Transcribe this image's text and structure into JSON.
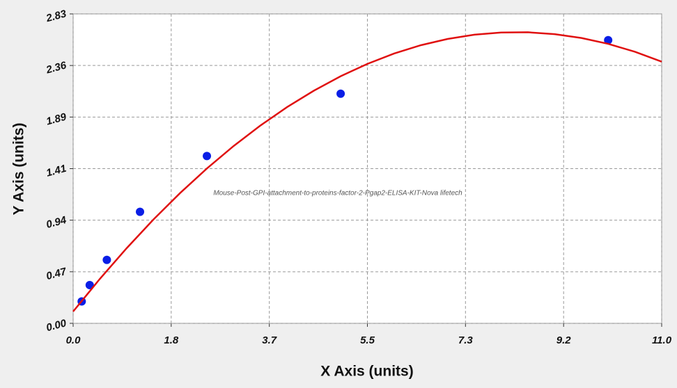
{
  "chart_data": {
    "type": "scatter",
    "annotation": "Mouse-Post-GPI-attachment-to-proteins-factor-2-Pgap2-ELISA-KIT-Nova lifetech",
    "x_label": "X Axis (units)",
    "y_label": "Y Axis (units)",
    "xlim": [
      0,
      11
    ],
    "ylim": [
      0,
      2.83
    ],
    "xticks": [
      {
        "value": 0,
        "label": "0.0"
      },
      {
        "value": 1.833,
        "label": "1.8"
      },
      {
        "value": 3.667,
        "label": "3.7"
      },
      {
        "value": 5.5,
        "label": "5.5"
      },
      {
        "value": 7.333,
        "label": "7.3"
      },
      {
        "value": 9.167,
        "label": "9.2"
      },
      {
        "value": 11,
        "label": "11.0"
      }
    ],
    "yticks": [
      {
        "value": 0,
        "label": "0.00"
      },
      {
        "value": 0.4717,
        "label": "0.47"
      },
      {
        "value": 0.9433,
        "label": "0.94"
      },
      {
        "value": 1.415,
        "label": "1.41"
      },
      {
        "value": 1.8867,
        "label": "1.89"
      },
      {
        "value": 2.3583,
        "label": "2.36"
      },
      {
        "value": 2.83,
        "label": "2.83"
      }
    ],
    "grid": true,
    "series": [
      {
        "kind": "points",
        "color": "#0a1ee6",
        "x": [
          0.16,
          0.31,
          0.63,
          1.25,
          2.5,
          5,
          10
        ],
        "values": [
          0.2,
          0.35,
          0.58,
          1.02,
          1.53,
          2.1,
          2.59
        ]
      },
      {
        "kind": "line",
        "color": "#e01010",
        "x": [
          0,
          0.5,
          1,
          1.5,
          2,
          2.5,
          3,
          3.5,
          4,
          4.5,
          5,
          5.5,
          6,
          6.5,
          7,
          7.5,
          8,
          8.5,
          9,
          9.5,
          10,
          10.5,
          11
        ],
        "values": [
          0.108,
          0.407,
          0.687,
          0.949,
          1.192,
          1.416,
          1.622,
          1.809,
          1.978,
          2.128,
          2.26,
          2.373,
          2.468,
          2.544,
          2.601,
          2.64,
          2.66,
          2.662,
          2.645,
          2.61,
          2.556,
          2.484,
          2.393
        ]
      }
    ]
  }
}
